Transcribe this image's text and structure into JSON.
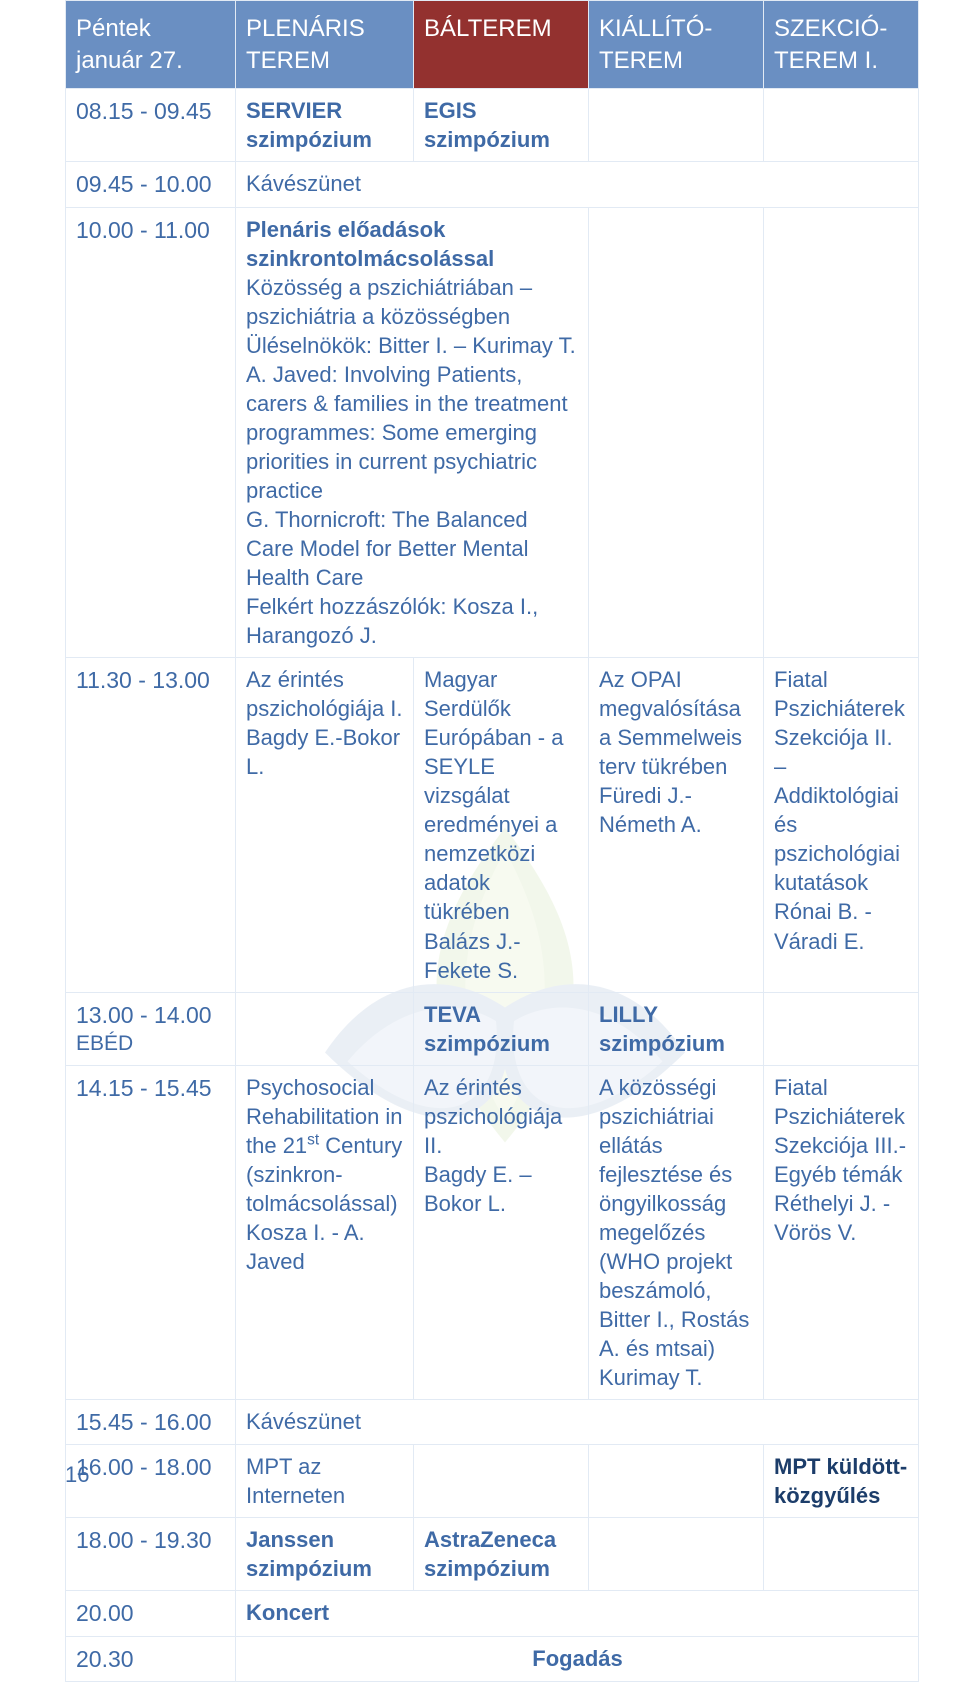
{
  "colors": {
    "header_bg": "#6a8fc2",
    "header_highlight_bg": "#93312f",
    "header_text": "#ffffff",
    "body_text": "#3f6aa6",
    "border": "#e2eaf4",
    "page_bg": "#ffffff",
    "logo_green_dark": "#8bb84a",
    "logo_green_light": "#bcd97a",
    "logo_blue_dark": "#3f6aa6",
    "logo_blue_light": "#8aa9d0"
  },
  "fontsizes": {
    "header": 24,
    "body": 22,
    "time": 23
  },
  "header": {
    "date_day": "Péntek",
    "date": "január 27.",
    "col1": "PLENÁRIS TEREM",
    "col2": "BÁLTEREM",
    "col3": "KIÁLLÍTÓ-\nTEREM",
    "col4": "SZEKCIÓ-\nTEREM I."
  },
  "rows": {
    "r1": {
      "t": "08.15 - 09.45",
      "c1a": "SERVIER",
      "c1b": "szimpózium",
      "c2a": "EGIS",
      "c2b": "szimpózium"
    },
    "r2": {
      "t": "09.45 - 10.00",
      "c1": "Kávészünet"
    },
    "r3": {
      "t": "10.00 - 11.00",
      "c1_strong": "Plenáris előadások szinkrontolmácsolással",
      "c1_body": "Közösség a pszichiátriában – pszichiátria a közösségben\nÜléselnökök: Bitter I. – Kurimay T.\nA. Javed: Involving Patients, carers & families in the treatment programmes: Some emerging priorities in current psychiatric practice\nG. Thornicroft: The Balanced Care Model for Better Mental Health Care\nFelkért hozzászólók: Kosza I., Harangozó J."
    },
    "r4": {
      "t": "11.30 - 13.00",
      "c1": "Az érintés pszichológiája I.\nBagdy E.-Bokor L.",
      "c2": "Magyar Serdülők Európában - a SEYLE vizsgálat eredményei a nemzetközi adatok tükrében\nBalázs J.- Fekete S.",
      "c3": "Az OPAI megvalósítása a Semmelweis terv tükrében\nFüredi J.-\nNémeth A.",
      "c4": "Fiatal Pszichiáterek Szekciója II. – Addiktológiai és pszichológiai kutatások\nRónai B. - Váradi E."
    },
    "r5": {
      "t": "13.00 - 14.00",
      "tsub": "EBÉD",
      "c2a": "TEVA",
      "c2b": "szimpózium",
      "c3a": "LILLY",
      "c3b": "szimpózium"
    },
    "r6": {
      "t": "14.15 - 15.45",
      "c1_pre": "Psychosocial Rehabilitation in the 21",
      "c1_sup": "st",
      "c1_post": " Century (szinkron-\ntolmácsolással)\nKosza I. - A. Javed",
      "c2": "Az érintés pszichológiája II.\nBagdy E. – Bokor L.",
      "c3": "A közösségi pszichiátriai ellátás fejlesztése és öngyilkosság megelőzés\n(WHO projekt beszámoló, Bitter I., Rostás A. és mtsai) Kurimay T.",
      "c4": "Fiatal Pszichiáterek Szekciója III.- Egyéb témák\nRéthelyi J. - Vörös V."
    },
    "r7": {
      "t": "15.45 - 16.00",
      "c1": "Kávészünet"
    },
    "r8": {
      "t": "16.00 - 18.00",
      "c1": "MPT az Interneten",
      "c4": "MPT küldött-\nközgyűlés"
    },
    "r9": {
      "t": "18.00 - 19.30",
      "c1a": "Janssen",
      "c1b": "szimpózium",
      "c2a": "AstraZeneca",
      "c2b": "szimpózium"
    },
    "r10": {
      "t": "20.00",
      "c1": "Koncert"
    },
    "r11": {
      "t": "20.30",
      "c1": "Fogadás"
    }
  },
  "page_number": "16"
}
